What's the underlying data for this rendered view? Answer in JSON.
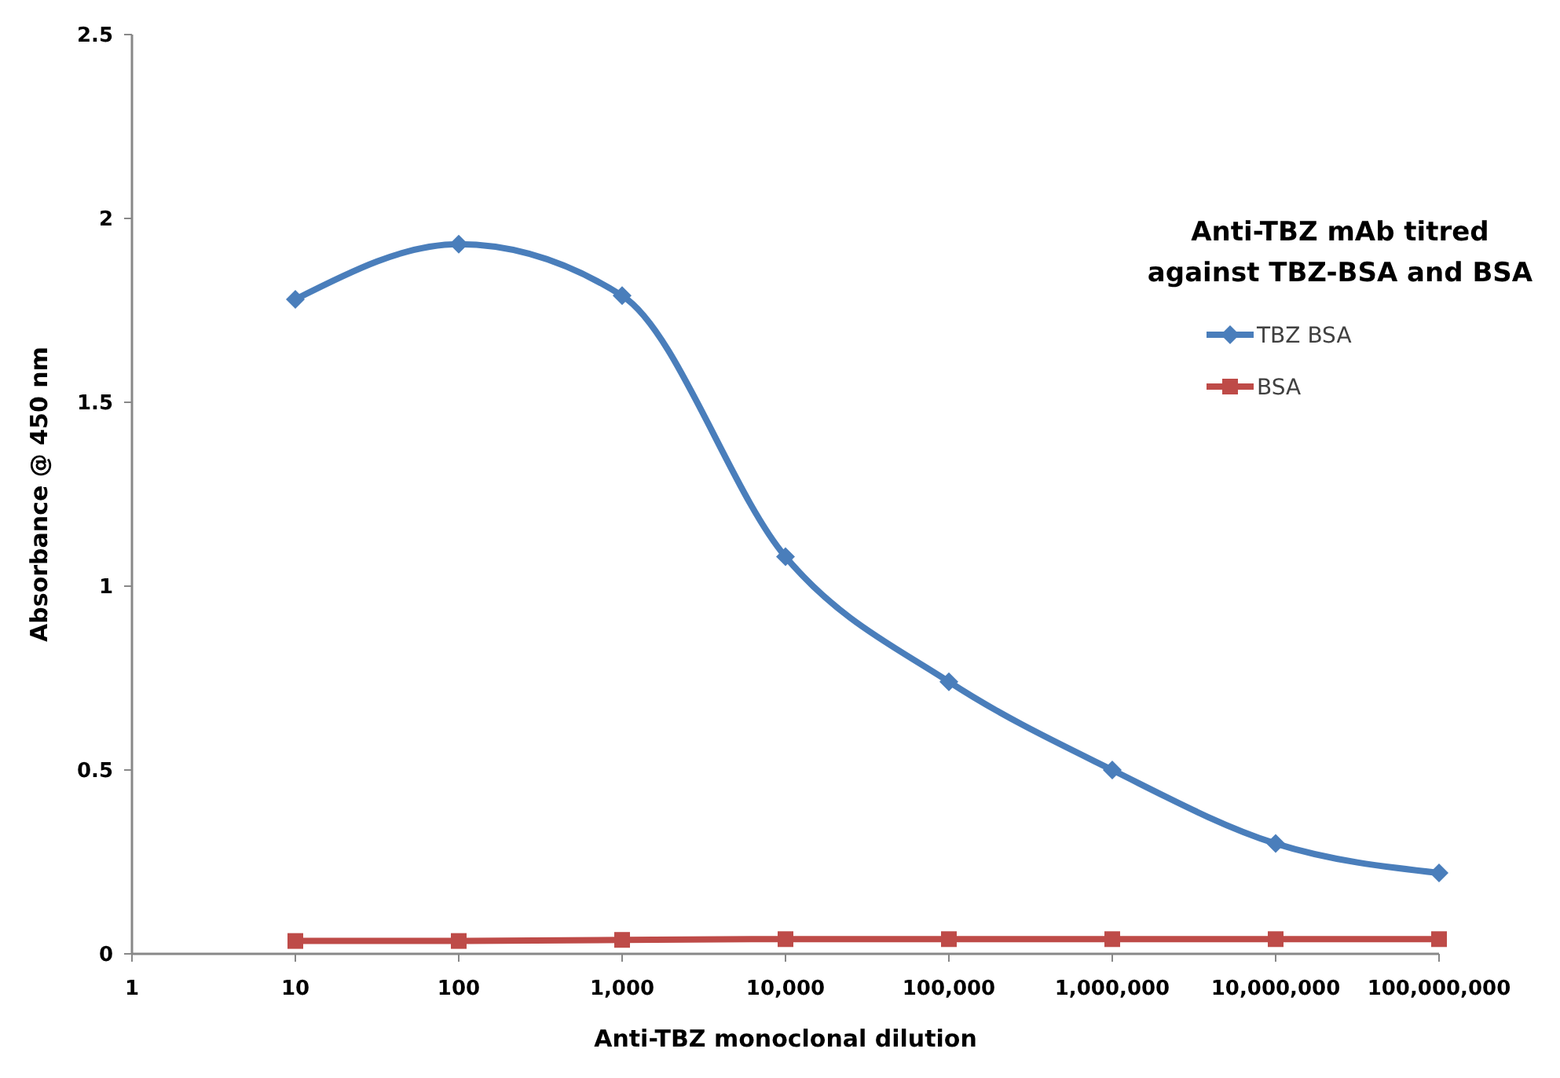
{
  "chart_data": {
    "type": "line",
    "xlabel": "Anti-TBZ monoclonal dilution",
    "ylabel": "Absorbance @ 450 nm",
    "legend_title": "Anti-TBZ mAb titred against TBZ-BSA and BSA",
    "legend": "right",
    "log": "x",
    "grid": false,
    "line_style": "solid",
    "x": [
      10,
      100,
      1000,
      10000,
      100000,
      1000000,
      10000000,
      100000000
    ],
    "xlim": [
      1,
      100000000
    ],
    "xticks": [
      1,
      10,
      100,
      {
        "value": 1000,
        "label": "1,000"
      },
      {
        "value": 10000,
        "label": "10,000"
      },
      {
        "value": 100000,
        "label": "100,000"
      },
      {
        "value": 1000000,
        "label": "1,000,000"
      },
      {
        "value": 10000000,
        "label": "10,000,000"
      },
      {
        "value": 100000000,
        "label": "100,000,000"
      }
    ],
    "ylim": [
      0,
      2.5
    ],
    "yticks": [
      0,
      0.5,
      1,
      1.5,
      2,
      2.5
    ],
    "series": [
      {
        "name": "TBZ BSA",
        "color": "#4a7ebb",
        "marker": "diamond",
        "values": [
          1.78,
          1.93,
          1.79,
          1.08,
          0.74,
          0.5,
          0.3,
          0.22
        ]
      },
      {
        "name": "BSA",
        "color": "#be4b48",
        "marker": "square",
        "values": [
          0.035,
          0.035,
          0.038,
          0.04,
          0.04,
          0.04,
          0.04,
          0.04
        ]
      }
    ]
  }
}
